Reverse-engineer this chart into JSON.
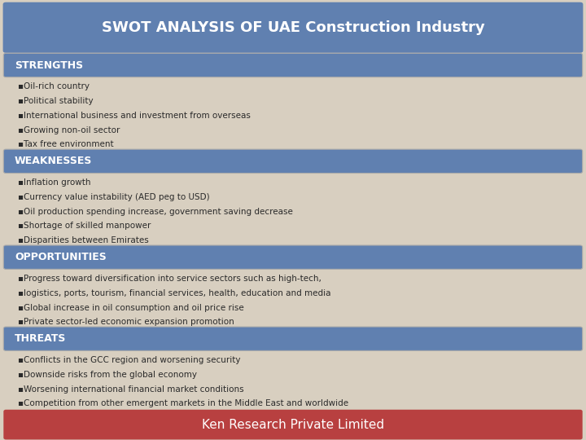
{
  "title": "SWOT ANALYSIS OF UAE Construction Industry",
  "title_bg": "#6080b0",
  "title_color": "#ffffff",
  "bg_color": "#d8cfc0",
  "section_bg": "#6080b0",
  "section_color": "#ffffff",
  "bullet_color": "#2a2a2a",
  "footer_bg": "#b84040",
  "footer_color": "#ffffff",
  "footer_text": "Ken Research Private Limited",
  "sections": [
    {
      "title": "STRENGTHS",
      "bullets": [
        "▪Oil-rich country",
        "▪Political stability",
        "▪International business and investment from overseas",
        "▪Growing non-oil sector",
        "▪Tax free environment"
      ]
    },
    {
      "title": "WEAKNESSES",
      "bullets": [
        "▪Inflation growth",
        "▪Currency value instability (AED peg to USD)",
        "▪Oil production spending increase, government saving decrease",
        "▪Shortage of skilled manpower",
        "▪Disparities between Emirates"
      ]
    },
    {
      "title": "OPPORTUNITIES",
      "bullets": [
        "▪Progress toward diversification into service sectors such as high-tech,",
        "▪logistics, ports, tourism, financial services, health, education and media",
        "▪Global increase in oil consumption and oil price rise",
        "▪Private sector-led economic expansion promotion"
      ]
    },
    {
      "title": "THREATS",
      "bullets": [
        "▪Conflicts in the GCC region and worsening security",
        "▪Downside risks from the global economy",
        "▪Worsening international financial market conditions",
        "▪Competition from other emergent markets in the Middle East and worldwide"
      ]
    }
  ]
}
